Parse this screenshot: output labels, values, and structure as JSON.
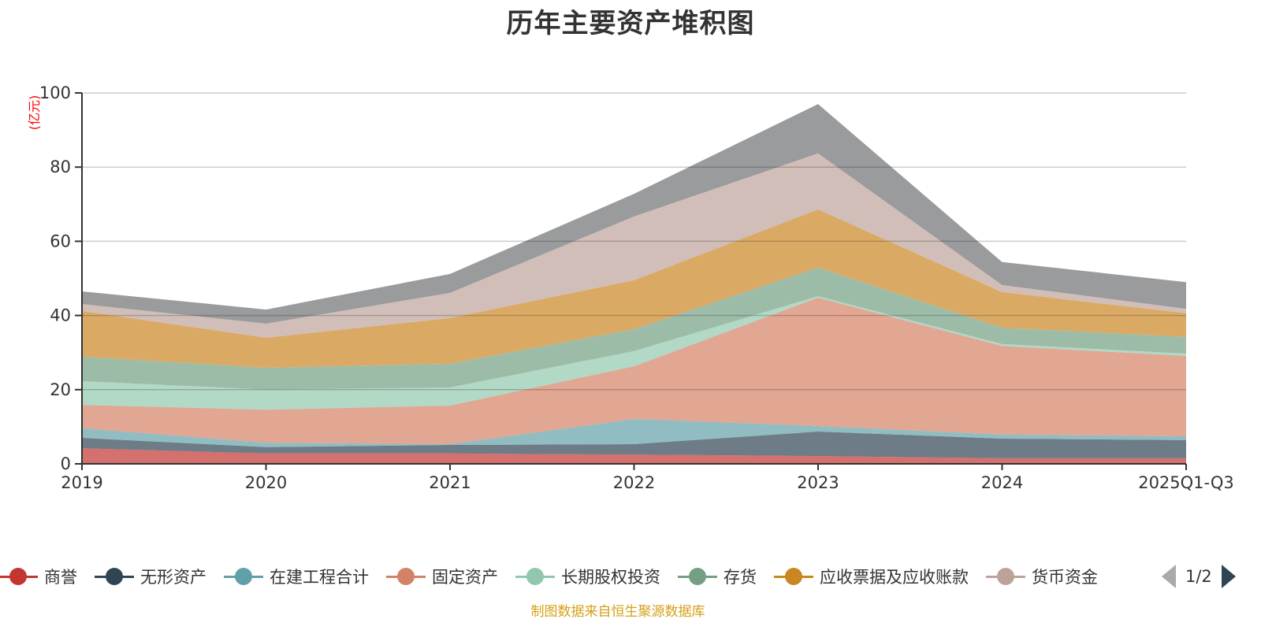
{
  "chart_data": {
    "type": "area",
    "stacked": true,
    "title": "历年主要资产堆积图",
    "ylabel": "(亿元)",
    "xlabel": "",
    "ylim": [
      0,
      100
    ],
    "yticks": [
      0,
      20,
      40,
      60,
      80,
      100
    ],
    "grid": true,
    "legend_position": "bottom",
    "categories": [
      "2019",
      "2020",
      "2021",
      "2022",
      "2023",
      "2024",
      "2025Q1-Q3"
    ],
    "series": [
      {
        "name": "商誉",
        "color": "#c23531",
        "values": [
          4.2,
          2.8,
          2.8,
          2.5,
          2.1,
          1.5,
          1.5
        ]
      },
      {
        "name": "无形资产",
        "color": "#2f4554",
        "values": [
          2.8,
          1.7,
          2.3,
          2.8,
          6.6,
          5.3,
          4.9
        ]
      },
      {
        "name": "在建工程合计",
        "color": "#61a0a8",
        "values": [
          2.6,
          1.2,
          0.2,
          6.8,
          1.5,
          1.1,
          1.0
        ]
      },
      {
        "name": "固定资产",
        "color": "#d48265",
        "values": [
          6.3,
          8.9,
          10.4,
          14.2,
          34.6,
          23.9,
          21.7
        ]
      },
      {
        "name": "长期股权投资",
        "color": "#91c7ae",
        "values": [
          6.4,
          5.4,
          4.9,
          4.1,
          0.4,
          0.5,
          0.6
        ]
      },
      {
        "name": "存货",
        "color": "#749f83",
        "values": [
          6.6,
          5.9,
          6.4,
          5.9,
          7.7,
          4.4,
          4.5
        ]
      },
      {
        "name": "应收票据及应收账款",
        "color": "#ca8622",
        "values": [
          12.3,
          8.1,
          12.3,
          13.2,
          15.7,
          9.6,
          6.4
        ]
      },
      {
        "name": "货币资金",
        "color": "#bda29a",
        "values": [
          1.9,
          3.8,
          6.8,
          17.2,
          15.1,
          1.9,
          1.2
        ]
      },
      {
        "name": "",
        "color": "#6e7074",
        "values": [
          3.4,
          3.8,
          5.1,
          6.1,
          13.3,
          6.2,
          7.2
        ]
      }
    ]
  },
  "legend": {
    "items": [
      {
        "label": "商誉",
        "color": "#c23531"
      },
      {
        "label": "无形资产",
        "color": "#2f4554"
      },
      {
        "label": "在建工程合计",
        "color": "#61a0a8"
      },
      {
        "label": "固定资产",
        "color": "#d48265"
      },
      {
        "label": "长期股权投资",
        "color": "#91c7ae"
      },
      {
        "label": "存货",
        "color": "#749f83"
      },
      {
        "label": "应收票据及应收账款",
        "color": "#ca8622"
      },
      {
        "label": "货币资金",
        "color": "#bda29a"
      }
    ],
    "page_indicator": "1/2"
  },
  "source_note": "制图数据来自恒生聚源数据库"
}
